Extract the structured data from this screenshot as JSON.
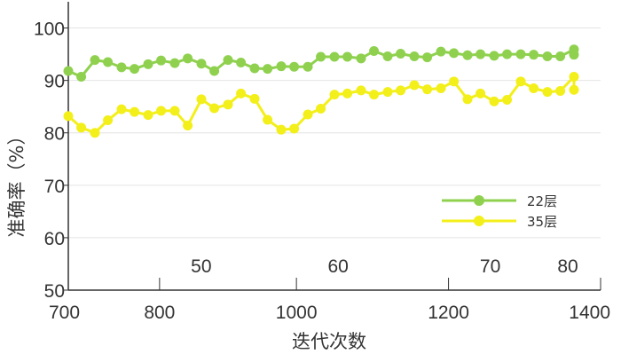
{
  "chart_data": {
    "type": "line",
    "title": "",
    "xlabel": "迭代次数",
    "ylabel": "准确率（%）",
    "xlim": [
      700,
      1400
    ],
    "ylim": [
      50,
      105
    ],
    "x_ticks": [
      "700",
      "800",
      "1000",
      "1200",
      "1400"
    ],
    "x_tick_values": [
      700,
      820,
      1000,
      1200,
      1400
    ],
    "x_inner_ticks": [
      "50",
      "60",
      "70",
      "80"
    ],
    "x_inner_tick_values": [
      820,
      1000,
      1200,
      1400
    ],
    "y_ticks": [
      "50",
      "60",
      "70",
      "80",
      "90",
      "100"
    ],
    "y_tick_values": [
      50,
      60,
      70,
      80,
      90,
      100
    ],
    "grid": true,
    "legend_position": "bottom-right",
    "series": [
      {
        "name": "22层",
        "color": "#8fd14f",
        "x": [
          700,
          717,
          735,
          752,
          770,
          787,
          805,
          822,
          840,
          857,
          875,
          892,
          910,
          927,
          945,
          962,
          980,
          997,
          1015,
          1032,
          1050,
          1067,
          1085,
          1102,
          1120,
          1137,
          1155,
          1172,
          1190,
          1207,
          1225,
          1242,
          1260,
          1277,
          1295,
          1312,
          1330,
          1347,
          1365,
          1365
        ],
        "values": [
          91.8,
          90.7,
          93.9,
          93.5,
          92.5,
          92.2,
          93.1,
          93.8,
          93.3,
          94.2,
          93.2,
          91.8,
          93.9,
          93.4,
          92.3,
          92.2,
          92.7,
          92.6,
          92.6,
          94.5,
          94.5,
          94.5,
          94.2,
          95.6,
          94.6,
          95.1,
          94.6,
          94.4,
          95.5,
          95.2,
          94.8,
          95.0,
          94.7,
          95.0,
          95.0,
          94.9,
          94.6,
          94.6,
          95.9,
          94.9
        ]
      },
      {
        "name": "35层",
        "color": "#f3ef1a",
        "x": [
          700,
          717,
          735,
          752,
          770,
          787,
          805,
          822,
          840,
          857,
          875,
          892,
          910,
          927,
          945,
          962,
          980,
          997,
          1015,
          1032,
          1050,
          1067,
          1085,
          1102,
          1120,
          1137,
          1155,
          1172,
          1190,
          1207,
          1225,
          1242,
          1260,
          1277,
          1295,
          1312,
          1330,
          1347,
          1365,
          1365
        ],
        "values": [
          83.2,
          81.0,
          80.0,
          82.4,
          84.5,
          84.0,
          83.4,
          84.2,
          84.2,
          81.4,
          86.4,
          84.7,
          85.4,
          87.5,
          86.5,
          82.5,
          80.6,
          80.8,
          83.5,
          84.6,
          87.3,
          87.5,
          88.1,
          87.3,
          87.8,
          88.1,
          89.1,
          88.3,
          88.5,
          89.8,
          86.4,
          87.5,
          86.0,
          86.3,
          89.8,
          88.5,
          87.8,
          88.0,
          90.7,
          88.2
        ]
      }
    ]
  }
}
